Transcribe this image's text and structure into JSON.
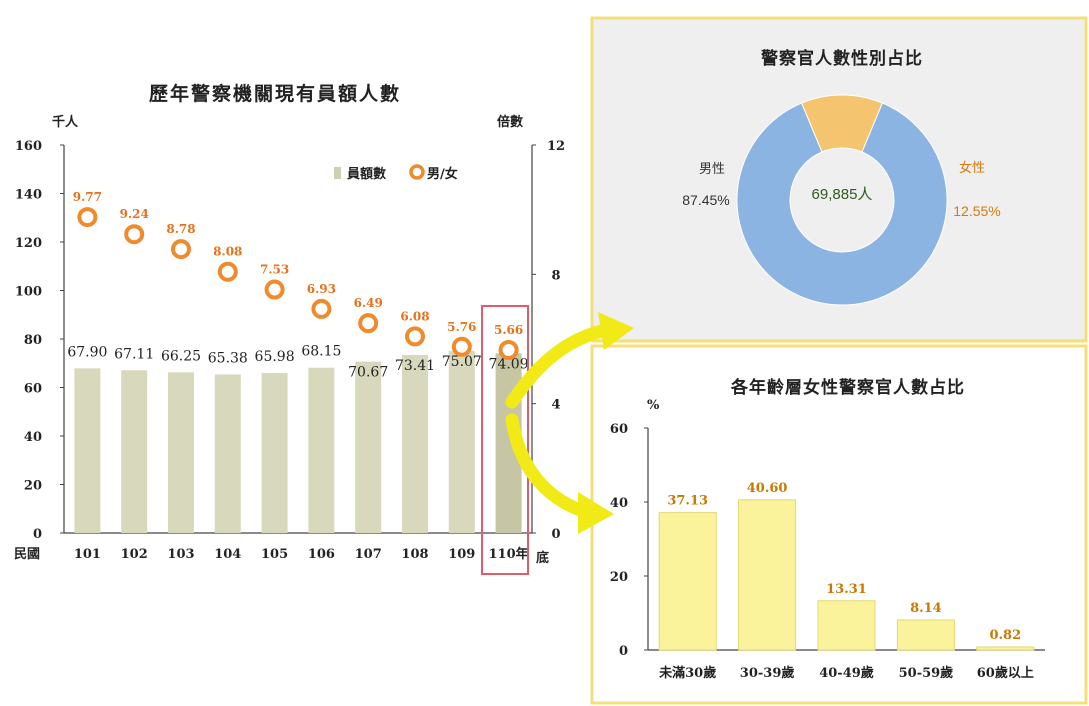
{
  "colors": {
    "bar": "#d8d8bd",
    "bar_last": "#c6c6a4",
    "ratio_marker": "#f08a2c",
    "ratio_label": "#e8701a",
    "male": "#8cb4e2",
    "female": "#f5c46e",
    "age_bar": "#fbf39b",
    "age_bar_stroke": "#e6d870",
    "panel_border": "#f3e07a",
    "panel_bg": "#efefef",
    "highlight_box": "#e35b6b",
    "arrow": "#f2ea16"
  },
  "chart_data": [
    {
      "type": "bar",
      "title": "歷年警察機關現有員額人數",
      "y_unit_left": "千人",
      "y_unit_right": "倍數",
      "x_prefix": "民國",
      "x_suffix": "底",
      "categories": [
        "101",
        "102",
        "103",
        "104",
        "105",
        "106",
        "107",
        "108",
        "109",
        "110年"
      ],
      "ylim": [
        0,
        160
      ],
      "yticks": [
        0,
        20,
        40,
        60,
        80,
        100,
        120,
        140,
        160
      ],
      "y2lim": [
        0,
        12
      ],
      "y2ticks": [
        0,
        4,
        8,
        12
      ],
      "legend_position": "top-right",
      "highlight_category": "110年",
      "series": [
        {
          "name": "員額數",
          "type": "bar",
          "axis": "left",
          "values": [
            67.9,
            67.11,
            66.25,
            65.38,
            65.98,
            68.15,
            70.67,
            73.41,
            75.07,
            74.09
          ],
          "labels": [
            "67.90",
            "67.11",
            "66.25",
            "65.38",
            "65.98",
            "68.15",
            "70.67",
            "73.41",
            "75.07",
            "74.09"
          ]
        },
        {
          "name": "男/女",
          "type": "scatter",
          "axis": "right",
          "values": [
            9.77,
            9.24,
            8.78,
            8.08,
            7.53,
            6.93,
            6.49,
            6.08,
            5.76,
            5.66
          ],
          "labels": [
            "9.77",
            "9.24",
            "8.78",
            "8.08",
            "7.53",
            "6.93",
            "6.49",
            "6.08",
            "5.76",
            "5.66"
          ]
        }
      ]
    },
    {
      "type": "pie",
      "title": "警察官人數性別占比",
      "center_label": "69,885人",
      "slices": [
        {
          "name": "男性",
          "value": 87.45,
          "label": "87.45%"
        },
        {
          "name": "女性",
          "value": 12.55,
          "label": "12.55%"
        }
      ]
    },
    {
      "type": "bar",
      "title": "各年齡層女性警察官人數占比",
      "y_unit": "%",
      "categories": [
        "未滿30歲",
        "30-39歲",
        "40-49歲",
        "50-59歲",
        "60歲以上"
      ],
      "values": [
        37.13,
        40.6,
        13.31,
        8.14,
        0.82
      ],
      "labels": [
        "37.13",
        "40.60",
        "13.31",
        "8.14",
        "0.82"
      ],
      "ylim": [
        0,
        60
      ],
      "yticks": [
        0,
        20,
        40,
        60
      ]
    }
  ]
}
